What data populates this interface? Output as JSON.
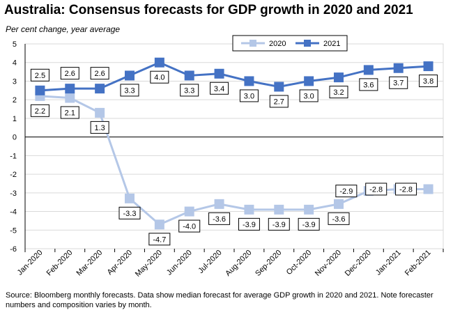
{
  "title": "Australia: Consensus forecasts for GDP growth in 2020 and 2021",
  "subtitle": "Per cent change, year average",
  "source": "Source: Bloomberg monthly forecasts.  Data show median forecast for average GDP growth in 2020 and 2021.  Note forecaster numbers and composition varies by month.",
  "colors": {
    "s2020": "#b4c7e7",
    "s2021": "#4472c4",
    "grid": "#d9d9d9",
    "axis": "#000000"
  },
  "chart_data": {
    "type": "line",
    "title": "Australia: Consensus forecasts for GDP growth in 2020 and 2021",
    "subtitle": "Per cent change, year average",
    "categories": [
      "Jan-2020",
      "Feb-2020",
      "Mar-2020",
      "Apr-2020",
      "May-2020",
      "Jun-2020",
      "Jul-2020",
      "Aug-2020",
      "Sep-2020",
      "Oct-2020",
      "Nov-2020",
      "Dec-2020",
      "Jan-2021",
      "Feb-2021"
    ],
    "series": [
      {
        "name": "2020",
        "values": [
          2.2,
          2.1,
          1.3,
          -3.3,
          -4.7,
          -4.0,
          -3.6,
          -3.9,
          -3.9,
          -3.9,
          -3.6,
          -2.9,
          -2.8,
          -2.8
        ],
        "labels": [
          "2.2",
          "2.1",
          "1.3",
          "-3.3",
          "-4.7",
          "-4.0",
          "-3.6",
          "-3.9",
          "-3.9",
          "-3.9",
          "-3.6",
          "-2.9",
          "-2.8",
          "-2.8"
        ]
      },
      {
        "name": "2021",
        "values": [
          2.5,
          2.6,
          2.6,
          3.3,
          4.0,
          3.3,
          3.4,
          3.0,
          2.7,
          3.0,
          3.2,
          3.6,
          3.7,
          3.8
        ],
        "labels": [
          "2.5",
          "2.6",
          "2.6",
          "3.3",
          "4.0",
          "3.3",
          "3.4",
          "3.0",
          "2.7",
          "3.0",
          "3.2",
          "3.6",
          "3.7",
          "3.8"
        ]
      }
    ],
    "ylim": [
      -6,
      5
    ],
    "yticks": [
      "-6",
      "-5",
      "-4",
      "-3",
      "-2",
      "-1",
      "0",
      "1",
      "2",
      "3",
      "4",
      "5"
    ],
    "grid": true,
    "legend_position": "top-right"
  }
}
